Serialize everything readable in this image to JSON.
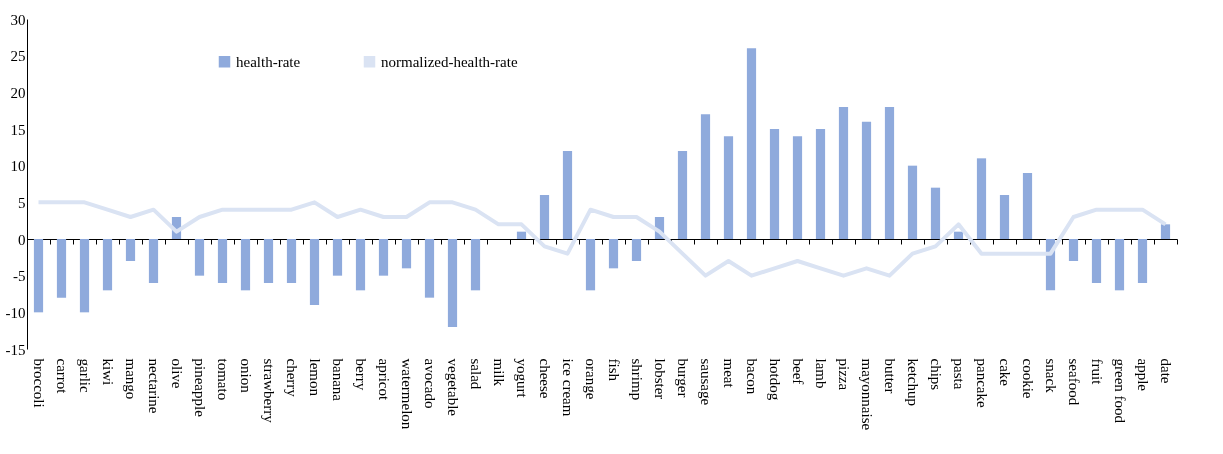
{
  "chart_data": {
    "type": "bar",
    "categories": [
      "broccoli",
      "carrot",
      "garlic",
      "kiwi",
      "mango",
      "nectarine",
      "olive",
      "pineapple",
      "tomato",
      "onion",
      "strawberry",
      "cherry",
      "lemon",
      "banana",
      "berry",
      "apricot",
      "watermelon",
      "avocado",
      "vegetable",
      "salad",
      "milk",
      "yogurt",
      "cheese",
      "ice cream",
      "orange",
      "fish",
      "shrimp",
      "lobster",
      "burger",
      "sausage",
      "meat",
      "bacon",
      "hotdog",
      "beef",
      "lamb",
      "pizza",
      "mayonnaise",
      "butter",
      "ketchup",
      "chips",
      "pasta",
      "pancake",
      "cake",
      "cookie",
      "snack",
      "seafood",
      "fruit",
      "green food",
      "apple",
      "date"
    ],
    "series": [
      {
        "name": "health-rate",
        "color": "#8faadc",
        "values": [
          -10,
          -8,
          -10,
          -7,
          -3,
          -6,
          3,
          -5,
          -6,
          -7,
          -6,
          -6,
          -9,
          -5,
          -7,
          -5,
          -4,
          -8,
          -12,
          -7,
          0,
          1,
          6,
          12,
          -7,
          -4,
          -3,
          3,
          12,
          17,
          14,
          26,
          15,
          14,
          15,
          18,
          16,
          18,
          10,
          7,
          1,
          11,
          6,
          9,
          -7,
          -3,
          -6,
          -7,
          -6,
          2
        ]
      },
      {
        "name": "normalized-health-rate",
        "type": "line",
        "color": "#dae3f3",
        "values": [
          5,
          5,
          5,
          4,
          3,
          4,
          1,
          3,
          4,
          4,
          4,
          4,
          5,
          3,
          4,
          3,
          3,
          5,
          5,
          4,
          2,
          2,
          -1,
          -2,
          4,
          3,
          3,
          1,
          -2,
          -5,
          -3,
          -5,
          -4,
          -3,
          -4,
          -5,
          -4,
          -5,
          -2,
          -1,
          2,
          -2,
          -2,
          -2,
          -2,
          3,
          4,
          4,
          4,
          2
        ]
      }
    ],
    "ylim": [
      -15,
      30
    ],
    "yticks": [
      -15,
      -10,
      -5,
      0,
      5,
      10,
      15,
      20,
      25,
      30
    ],
    "legend": "top left"
  }
}
